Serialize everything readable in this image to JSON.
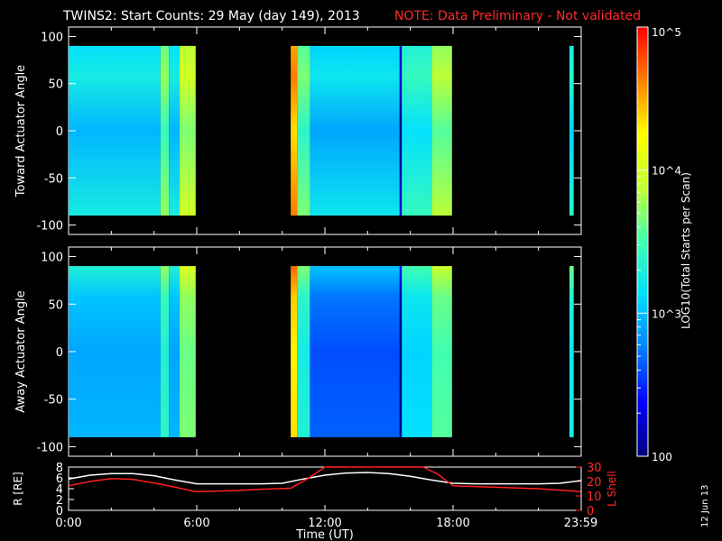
{
  "header": {
    "title": "TWINS2: Start Counts: 29 May (day 149), 2013",
    "note": "NOTE: Data Preliminary - Not validated"
  },
  "timestamp": "12 Jun 13",
  "colors": {
    "background": "#000000",
    "axis": "#ffffff",
    "note": "#ff2a2a",
    "r_line": "#ffffff",
    "lshell_line": "#ff2020"
  },
  "colorbar": {
    "label": "LOG10(Total Starts per Scan)",
    "scale": "log",
    "range": [
      100,
      100000
    ],
    "tick_labels": [
      "100",
      "10^3",
      "10^4",
      "10^5"
    ],
    "palette": [
      "#000080",
      "#0000ff",
      "#0080ff",
      "#00e0ff",
      "#40ffb0",
      "#c0ff30",
      "#ffff00",
      "#ff8000",
      "#ff0000"
    ]
  },
  "chart_data": [
    {
      "type": "heatmap",
      "ylabel": "Toward Actuator Angle",
      "ylim": [
        -110,
        110
      ],
      "y_ticks": [
        100,
        50,
        0,
        -50,
        -100
      ],
      "data_angle_range": [
        -90,
        90
      ],
      "xlim_hours": [
        0,
        24
      ],
      "data_intervals_hours": [
        [
          0.0,
          5.95
        ],
        [
          10.4,
          17.95
        ],
        [
          23.45,
          23.65
        ]
      ],
      "bands": [
        {
          "x": [
            0.0,
            4.3
          ],
          "level": 0.32
        },
        {
          "x": [
            4.3,
            4.7
          ],
          "level": 0.48
        },
        {
          "x": [
            4.7,
            5.2
          ],
          "level": 0.32
        },
        {
          "x": [
            5.2,
            5.95
          ],
          "level": 0.56
        },
        {
          "x": [
            10.4,
            10.7
          ],
          "level": 0.78
        },
        {
          "x": [
            10.7,
            11.3
          ],
          "level": 0.46
        },
        {
          "x": [
            11.3,
            15.5
          ],
          "level": 0.3
        },
        {
          "x": [
            15.5,
            15.6
          ],
          "level": 0.0
        },
        {
          "x": [
            15.6,
            17.0
          ],
          "level": 0.38
        },
        {
          "x": [
            17.0,
            17.95
          ],
          "level": 0.52
        },
        {
          "x": [
            23.45,
            23.65
          ],
          "level": 0.36
        }
      ]
    },
    {
      "type": "heatmap",
      "ylabel": "Away Actuator Angle",
      "ylim": [
        -110,
        110
      ],
      "y_ticks": [
        100,
        50,
        0,
        -50,
        -100
      ],
      "data_angle_range": [
        -90,
        90
      ],
      "xlim_hours": [
        0,
        24
      ],
      "data_intervals_hours": [
        [
          0.0,
          5.95
        ],
        [
          10.4,
          17.95
        ],
        [
          23.45,
          23.65
        ]
      ],
      "bands": [
        {
          "x": [
            0.0,
            4.3
          ],
          "level": 0.3
        },
        {
          "x": [
            4.3,
            4.7
          ],
          "level": 0.44
        },
        {
          "x": [
            4.7,
            5.2
          ],
          "level": 0.3
        },
        {
          "x": [
            5.2,
            5.95
          ],
          "level": 0.54
        },
        {
          "x": [
            10.4,
            10.7
          ],
          "level": 0.76
        },
        {
          "x": [
            10.7,
            11.3
          ],
          "level": 0.42
        },
        {
          "x": [
            11.3,
            15.5
          ],
          "level": 0.2
        },
        {
          "x": [
            15.5,
            15.6
          ],
          "level": 0.0
        },
        {
          "x": [
            15.6,
            17.0
          ],
          "level": 0.36
        },
        {
          "x": [
            17.0,
            17.95
          ],
          "level": 0.5
        },
        {
          "x": [
            23.45,
            23.65
          ],
          "level": 0.4
        }
      ]
    },
    {
      "type": "line",
      "ylabel_left": "R [RE]",
      "ylabel_right": "L Shell",
      "xlabel": "Time (UT)",
      "xlim_hours": [
        0,
        24
      ],
      "x_tick_labels": [
        "0:00",
        "6:00",
        "12:00",
        "18:00",
        "23:59"
      ],
      "left_ylim": [
        0,
        8
      ],
      "left_ticks": [
        "8",
        "6",
        "4",
        "2",
        "0"
      ],
      "right_ylim": [
        0,
        30
      ],
      "right_ticks": [
        "30",
        "20",
        "10",
        "0"
      ],
      "series": [
        {
          "name": "R",
          "x": [
            0,
            1,
            2,
            3,
            4,
            5,
            6,
            7,
            8,
            9,
            10,
            11,
            12,
            13,
            14,
            15,
            16,
            17,
            18,
            19,
            20,
            21,
            22,
            23,
            23.98
          ],
          "y": [
            5.8,
            6.5,
            6.8,
            6.8,
            6.4,
            5.6,
            4.9,
            4.9,
            4.9,
            4.9,
            5.0,
            5.8,
            6.5,
            6.9,
            7.0,
            6.8,
            6.3,
            5.6,
            5.0,
            4.9,
            4.9,
            4.9,
            4.9,
            5.0,
            5.5
          ]
        },
        {
          "name": "L Shell",
          "x": [
            0,
            1,
            2,
            3,
            4,
            5,
            5.95,
            7,
            8,
            9,
            10.4,
            11.2,
            12.0,
            16.6,
            17.3,
            18.0,
            19,
            20,
            21,
            22,
            23,
            23.98
          ],
          "y": [
            17,
            20,
            22,
            21.5,
            19,
            16,
            13,
            13.4,
            13.8,
            14.6,
            15.3,
            22,
            30,
            30,
            25,
            17,
            16.5,
            16,
            15.5,
            15,
            14,
            13
          ]
        }
      ]
    }
  ]
}
